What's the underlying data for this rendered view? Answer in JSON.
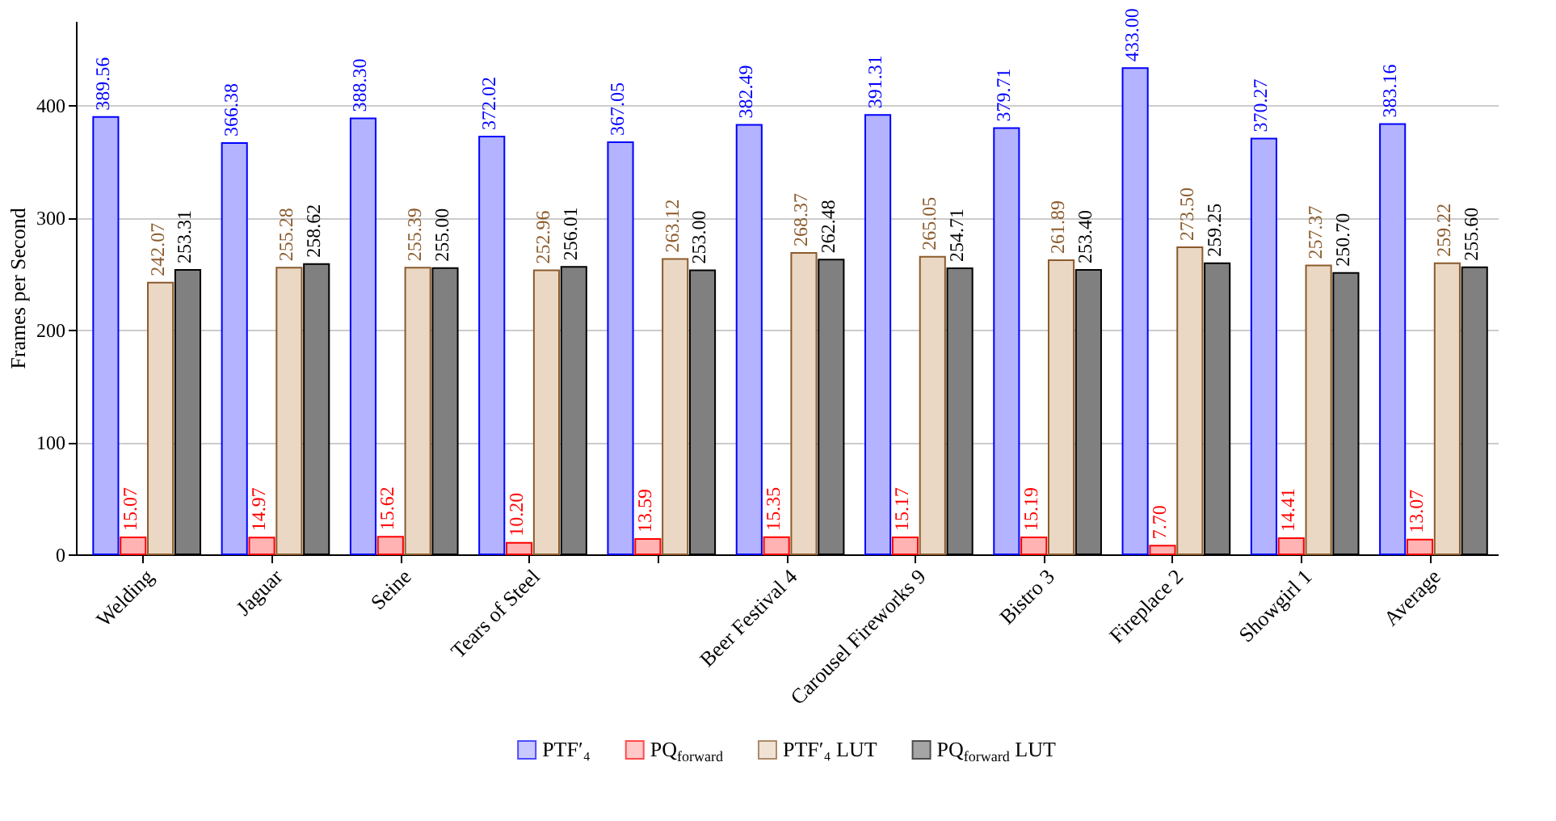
{
  "chart_data": {
    "type": "bar",
    "ylabel": "Frames per Second",
    "categories": [
      "Welding",
      "Jaguar",
      "Seine",
      "Tears of Steel",
      null,
      "Beer Festival 4",
      "Carousel Fireworks 9",
      "Bistro 3",
      "Fireplace 2",
      "Showgirl 1",
      "Average"
    ],
    "series": [
      {
        "name": "PTF′₄",
        "color": "#b3b3ff",
        "values": [
          389.56,
          366.38,
          388.3,
          372.02,
          367.05,
          382.49,
          391.31,
          379.71,
          433.0,
          370.27,
          383.16
        ],
        "value_labels": [
          "389.56",
          "366.38",
          "388.30",
          "372.02",
          "367.05",
          "382.49",
          "391.31",
          "379.71",
          "433.00",
          "370.27",
          "383.16"
        ]
      },
      {
        "name": "PQ$_{forward}$",
        "color": "#ffb3b3",
        "values": [
          15.07,
          14.97,
          15.62,
          10.2,
          13.59,
          15.35,
          15.17,
          15.19,
          7.7,
          14.41,
          13.07
        ],
        "value_labels": [
          "15.07",
          "14.97",
          "15.62",
          "10.20",
          "13.59",
          "15.35",
          "15.17",
          "15.19",
          "7.70",
          "14.41",
          "13.07"
        ]
      },
      {
        "name": "PTF′₄ LUT",
        "color": "#ead8c5",
        "values": [
          242.07,
          255.28,
          255.39,
          252.96,
          263.12,
          268.37,
          265.05,
          261.89,
          273.5,
          257.37,
          259.22
        ],
        "value_labels": [
          "242.07",
          "255.28",
          "255.39",
          "252.96",
          "263.12",
          "268.37",
          "265.05",
          "261.89",
          "273.50",
          "257.37",
          "259.22"
        ]
      },
      {
        "name": "PQ$_{forward}$ LUT",
        "color": "#808080",
        "values": [
          253.31,
          258.62,
          255.0,
          256.01,
          253.0,
          262.48,
          254.71,
          253.4,
          259.25,
          250.7,
          255.6
        ],
        "value_labels": [
          "253.31",
          "258.62",
          "255.00",
          "256.01",
          "253.00",
          "262.48",
          "254.71",
          "253.40",
          "259.25",
          "250.70",
          "255.60"
        ]
      }
    ],
    "ylim": [
      0,
      475
    ],
    "yticks": [
      0,
      100,
      200,
      300,
      400
    ],
    "grid": "y",
    "legend": "bottom"
  }
}
